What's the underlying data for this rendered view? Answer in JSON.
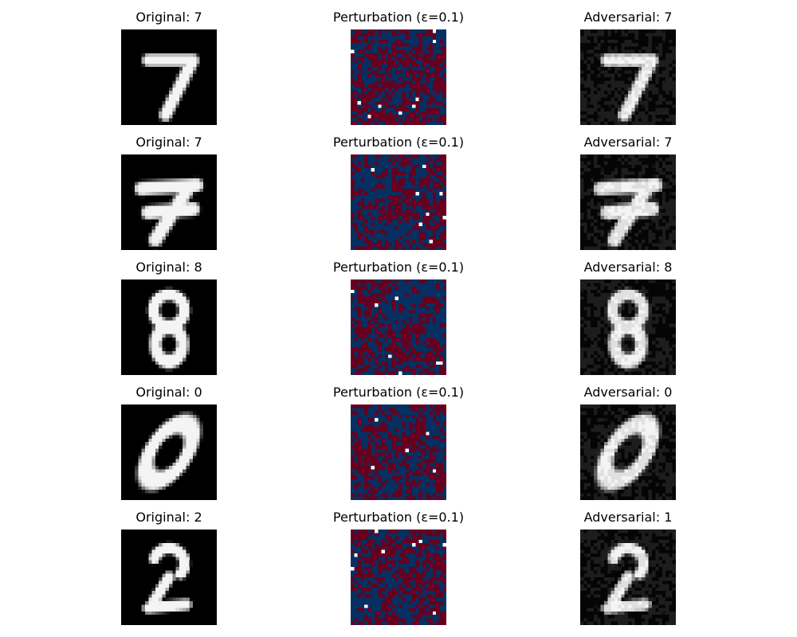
{
  "colors": {
    "background": "#ffffff",
    "digit_bg": "#000000",
    "digit_fg": "#f4f4f4",
    "perturb_positive": "#67001f",
    "perturb_negative": "#053061",
    "perturb_zero": "#ffffff"
  },
  "epsilon": 0.1,
  "rows": [
    {
      "original": {
        "title": "Original: 7",
        "digit": "7"
      },
      "perturbation": {
        "title": "Perturbation (ε=0.1)"
      },
      "adversarial": {
        "title": "Adversarial: 7",
        "digit": "7"
      }
    },
    {
      "original": {
        "title": "Original: 7",
        "digit": "7"
      },
      "perturbation": {
        "title": "Perturbation (ε=0.1)"
      },
      "adversarial": {
        "title": "Adversarial: 7",
        "digit": "7"
      }
    },
    {
      "original": {
        "title": "Original: 8",
        "digit": "8"
      },
      "perturbation": {
        "title": "Perturbation (ε=0.1)"
      },
      "adversarial": {
        "title": "Adversarial: 8",
        "digit": "8"
      }
    },
    {
      "original": {
        "title": "Original: 0",
        "digit": "0"
      },
      "perturbation": {
        "title": "Perturbation (ε=0.1)"
      },
      "adversarial": {
        "title": "Adversarial: 0",
        "digit": "0"
      }
    },
    {
      "original": {
        "title": "Original: 2",
        "digit": "2"
      },
      "perturbation": {
        "title": "Perturbation (ε=0.1)"
      },
      "adversarial": {
        "title": "Adversarial: 1",
        "digit": "2"
      }
    }
  ]
}
